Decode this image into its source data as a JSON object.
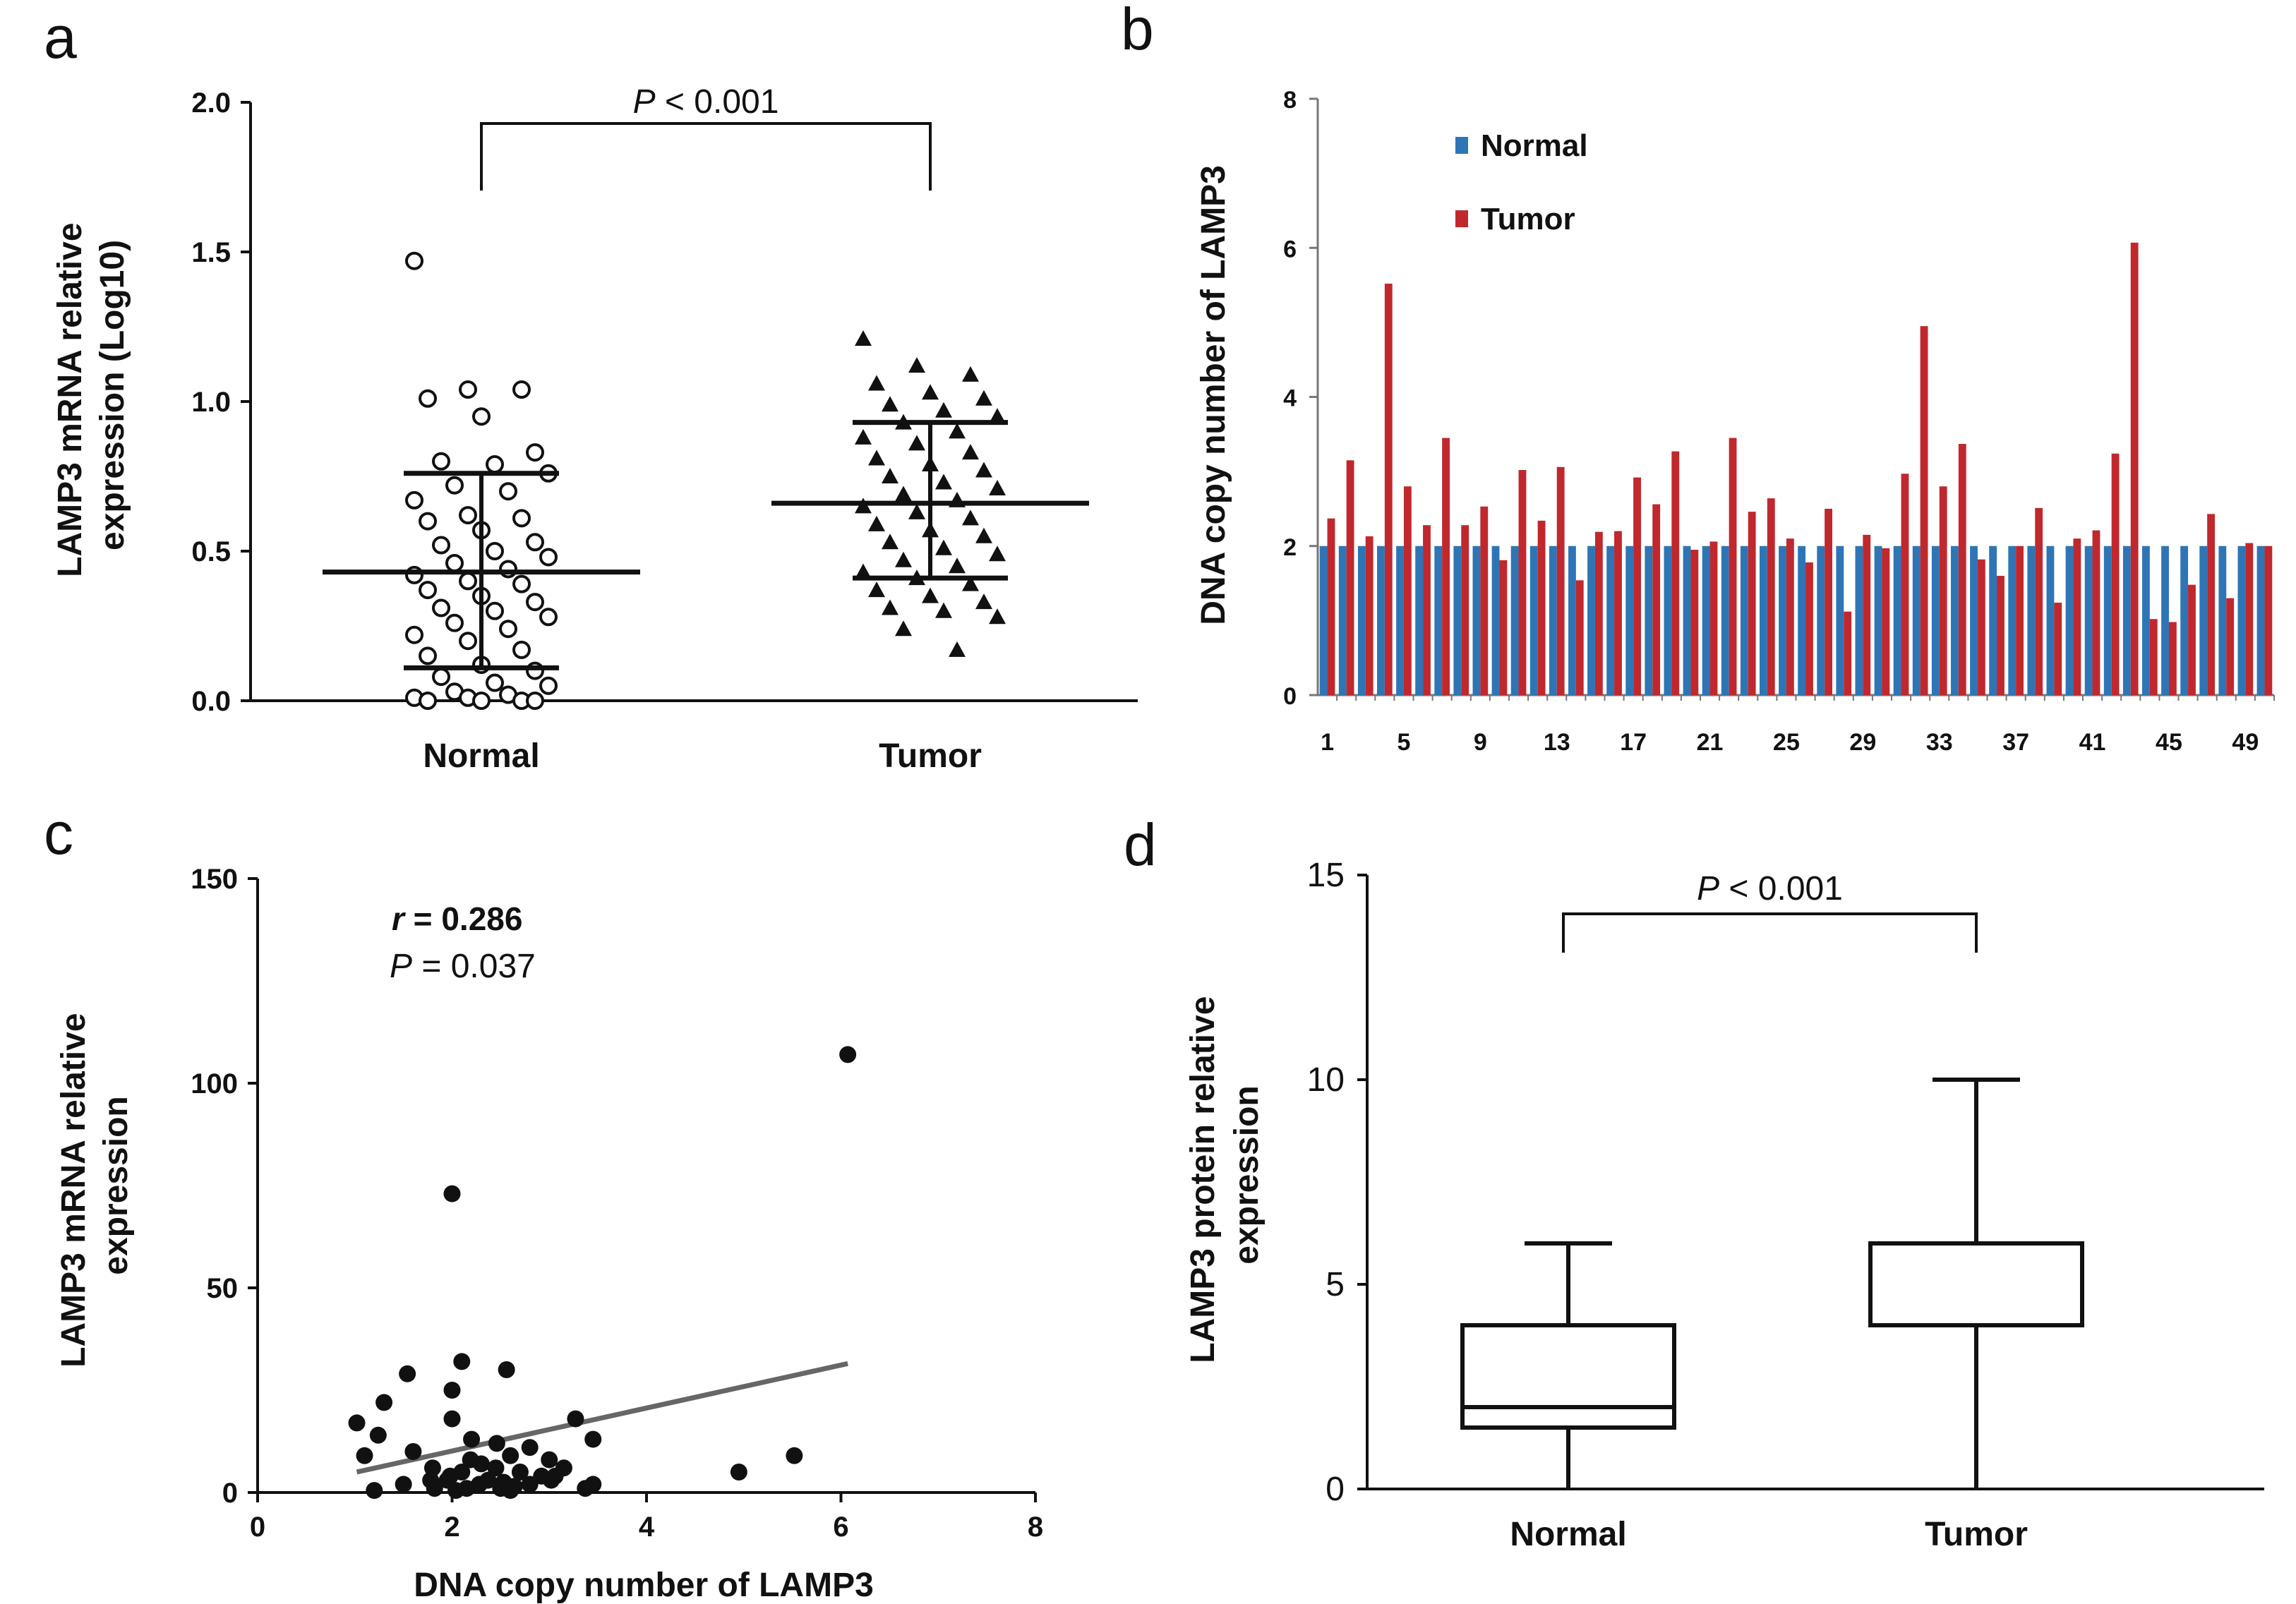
{
  "chart_data": [
    {
      "panel": "a",
      "type": "scatter",
      "title": "",
      "xlabel": "",
      "ylabel_lines": [
        "LAMP3 mRNA relative",
        "expression (Log10)"
      ],
      "categories": [
        "Normal",
        "Tumor"
      ],
      "ylim": [
        0,
        2.0
      ],
      "yticks": [
        "0.0",
        "0.5",
        "1.0",
        "1.5",
        "2.0"
      ],
      "significance": {
        "label_italic": "P",
        "label_rest": " < 0.001"
      },
      "series": [
        {
          "name": "Normal",
          "marker": "open-circle",
          "mean": 0.43,
          "sd_low": 0.11,
          "sd_high": 0.76,
          "values": [
            1.47,
            1.04,
            1.04,
            1.01,
            0.95,
            0.83,
            0.8,
            0.79,
            0.76,
            0.72,
            0.7,
            0.67,
            0.62,
            0.61,
            0.6,
            0.57,
            0.53,
            0.52,
            0.5,
            0.48,
            0.46,
            0.44,
            0.42,
            0.4,
            0.39,
            0.37,
            0.35,
            0.33,
            0.31,
            0.3,
            0.28,
            0.26,
            0.24,
            0.22,
            0.2,
            0.17,
            0.15,
            0.12,
            0.1,
            0.08,
            0.06,
            0.05,
            0.03,
            0.02,
            0.01,
            0.01,
            0.0,
            0.0,
            0.0,
            0.0
          ]
        },
        {
          "name": "Tumor",
          "marker": "filled-triangle",
          "mean": 0.66,
          "sd_low": 0.41,
          "sd_high": 0.93,
          "values": [
            1.21,
            1.12,
            1.09,
            1.06,
            1.03,
            1.01,
            0.99,
            0.97,
            0.95,
            0.93,
            0.9,
            0.88,
            0.86,
            0.83,
            0.81,
            0.79,
            0.77,
            0.75,
            0.73,
            0.71,
            0.69,
            0.67,
            0.65,
            0.63,
            0.61,
            0.59,
            0.57,
            0.55,
            0.53,
            0.51,
            0.49,
            0.47,
            0.45,
            0.43,
            0.41,
            0.39,
            0.37,
            0.35,
            0.33,
            0.31,
            0.3,
            0.28,
            0.24,
            0.17
          ]
        }
      ]
    },
    {
      "panel": "b",
      "type": "bar",
      "ylabel": "DNA copy number of LAMP3",
      "ylim": [
        0,
        8
      ],
      "yticks": [
        "0",
        "2",
        "4",
        "6",
        "8"
      ],
      "xtick_labels": [
        "1",
        "5",
        "9",
        "13",
        "17",
        "21",
        "25",
        "29",
        "33",
        "37",
        "41",
        "45",
        "49"
      ],
      "categories": [
        1,
        2,
        3,
        4,
        5,
        6,
        7,
        8,
        9,
        10,
        11,
        12,
        13,
        14,
        15,
        16,
        17,
        18,
        19,
        20,
        21,
        22,
        23,
        24,
        25,
        26,
        27,
        28,
        29,
        30,
        31,
        32,
        33,
        34,
        35,
        36,
        37,
        38,
        39,
        40,
        41,
        42,
        43,
        44,
        45,
        46,
        47,
        48,
        49,
        50
      ],
      "series": [
        {
          "name": "Normal",
          "color": "#2e75b6",
          "values": [
            2,
            2,
            2,
            2,
            2,
            2,
            2,
            2,
            2,
            2,
            2,
            2,
            2,
            2,
            2,
            2,
            2,
            2,
            2,
            2,
            2,
            2,
            2,
            2,
            2,
            2,
            2,
            2,
            2,
            2,
            2,
            2,
            2,
            2,
            2,
            2,
            2,
            2,
            2,
            2,
            2,
            2,
            2,
            2,
            2,
            2,
            2,
            2,
            2,
            2
          ]
        },
        {
          "name": "Tumor",
          "color": "#c0282d",
          "values": [
            2.37,
            3.15,
            2.13,
            5.52,
            2.8,
            2.28,
            3.45,
            2.28,
            2.53,
            1.81,
            3.02,
            2.34,
            3.06,
            1.54,
            2.19,
            2.2,
            2.92,
            2.56,
            3.27,
            1.95,
            2.06,
            3.45,
            2.46,
            2.64,
            2.1,
            1.78,
            2.5,
            1.12,
            2.15,
            1.97,
            2.97,
            4.95,
            2.8,
            3.37,
            1.82,
            1.6,
            2.0,
            2.51,
            1.24,
            2.1,
            2.21,
            3.24,
            6.07,
            1.02,
            0.98,
            1.48,
            2.43,
            1.3,
            2.04,
            2.0
          ]
        }
      ],
      "legend": [
        "Normal",
        "Tumor"
      ]
    },
    {
      "panel": "c",
      "type": "scatter",
      "xlabel": "DNA copy number of LAMP3",
      "ylabel_lines": [
        "LAMP3 mRNA relative",
        "expression"
      ],
      "xlim": [
        0,
        8
      ],
      "ylim": [
        0,
        150
      ],
      "xticks": [
        "0",
        "2",
        "4",
        "6",
        "8"
      ],
      "yticks": [
        "0",
        "50",
        "100",
        "150"
      ],
      "stats": {
        "r_label": "r",
        "r_value": " = 0.286",
        "p_label": "P",
        "p_value": " = 0.037"
      },
      "trendline": {
        "x": [
          1.02,
          6.07
        ],
        "y": [
          5.0,
          31.5
        ]
      },
      "points": [
        {
          "x": 6.07,
          "y": 107
        },
        {
          "x": 2.0,
          "y": 73
        },
        {
          "x": 2.1,
          "y": 32
        },
        {
          "x": 2.56,
          "y": 30
        },
        {
          "x": 1.54,
          "y": 29
        },
        {
          "x": 2.0,
          "y": 25
        },
        {
          "x": 1.3,
          "y": 22
        },
        {
          "x": 1.02,
          "y": 17
        },
        {
          "x": 2.0,
          "y": 18
        },
        {
          "x": 3.27,
          "y": 18
        },
        {
          "x": 1.24,
          "y": 14
        },
        {
          "x": 3.45,
          "y": 13
        },
        {
          "x": 2.2,
          "y": 13
        },
        {
          "x": 2.46,
          "y": 12
        },
        {
          "x": 2.8,
          "y": 11
        },
        {
          "x": 1.6,
          "y": 10
        },
        {
          "x": 1.1,
          "y": 9
        },
        {
          "x": 2.6,
          "y": 9
        },
        {
          "x": 3.0,
          "y": 8
        },
        {
          "x": 5.52,
          "y": 9
        },
        {
          "x": 2.3,
          "y": 7
        },
        {
          "x": 1.8,
          "y": 6
        },
        {
          "x": 3.15,
          "y": 6
        },
        {
          "x": 2.1,
          "y": 5
        },
        {
          "x": 2.7,
          "y": 5
        },
        {
          "x": 4.95,
          "y": 5
        },
        {
          "x": 3.06,
          "y": 4
        },
        {
          "x": 1.95,
          "y": 3
        },
        {
          "x": 2.37,
          "y": 3
        },
        {
          "x": 2.8,
          "y": 2
        },
        {
          "x": 3.45,
          "y": 2
        },
        {
          "x": 1.5,
          "y": 2
        },
        {
          "x": 2.5,
          "y": 1
        },
        {
          "x": 2.15,
          "y": 1
        },
        {
          "x": 1.82,
          "y": 1
        },
        {
          "x": 1.2,
          "y": 0.5
        },
        {
          "x": 2.6,
          "y": 0.5
        },
        {
          "x": 2.04,
          "y": 0.5
        },
        {
          "x": 3.37,
          "y": 1
        },
        {
          "x": 2.92,
          "y": 4
        },
        {
          "x": 2.28,
          "y": 2
        },
        {
          "x": 2.64,
          "y": 1.5
        },
        {
          "x": 1.98,
          "y": 4
        },
        {
          "x": 2.45,
          "y": 6
        },
        {
          "x": 3.02,
          "y": 3
        },
        {
          "x": 2.19,
          "y": 8
        },
        {
          "x": 1.78,
          "y": 3
        },
        {
          "x": 2.53,
          "y": 2.5
        }
      ]
    },
    {
      "panel": "d",
      "type": "box",
      "ylabel_lines": [
        "LAMP3 protein relative",
        "expression"
      ],
      "categories": [
        "Normal",
        "Tumor"
      ],
      "ylim": [
        0,
        15
      ],
      "yticks": [
        "0",
        "5",
        "10",
        "15"
      ],
      "significance": {
        "label_italic": "P",
        "label_rest": " < 0.001"
      },
      "boxes": [
        {
          "name": "Normal",
          "min": 0,
          "q1": 1.5,
          "median": 2,
          "q3": 4,
          "max": 6
        },
        {
          "name": "Tumor",
          "min": 0,
          "q1": 4,
          "median": 4,
          "q3": 6,
          "max": 10
        }
      ]
    }
  ],
  "panel_letters": [
    "a",
    "b",
    "c",
    "d"
  ]
}
